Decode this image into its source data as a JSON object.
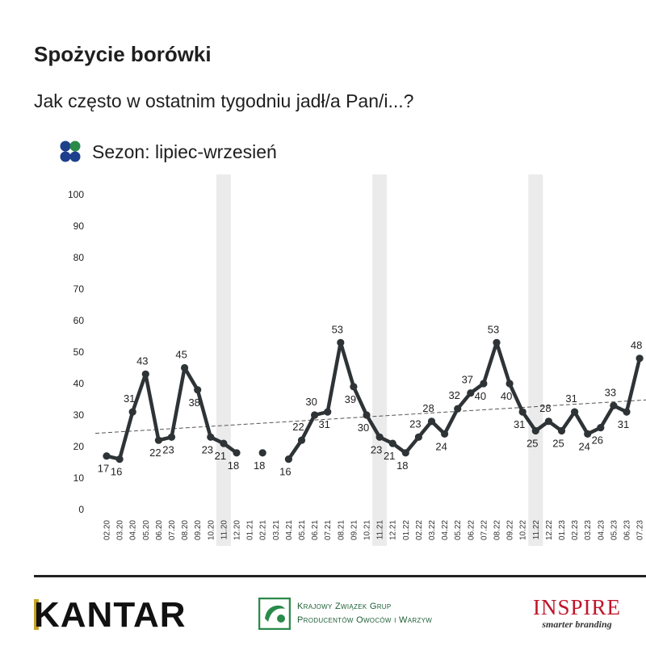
{
  "header": {
    "title": "Spożycie borówki",
    "subtitle": "Jak często w ostatnim tygodniu jadł/a Pan/i...?"
  },
  "legend": {
    "label": "Sezon: lipiec-wrzesień"
  },
  "chart_data": {
    "type": "line",
    "ylim": [
      0,
      100
    ],
    "yticks": [
      0,
      10,
      20,
      30,
      40,
      50,
      60,
      70,
      80,
      90,
      100
    ],
    "categories": [
      "02.20",
      "03.20",
      "04.20",
      "05.20",
      "06.20",
      "07.20",
      "08.20",
      "09.20",
      "10.20",
      "11.20",
      "12.20",
      "01.21",
      "02.21",
      "03.21",
      "04.21",
      "05.21",
      "06.21",
      "07.21",
      "08.21",
      "09.21",
      "10.21",
      "11.21",
      "12.21",
      "01.22",
      "02.22",
      "03.22",
      "04.22",
      "05.22",
      "06.22",
      "07.22",
      "08.22",
      "09.22",
      "10.22",
      "11.22",
      "12.22",
      "01.23",
      "02.23",
      "03.23",
      "04.23",
      "05.23",
      "06.23",
      "07.23"
    ],
    "series": [
      {
        "color": "#2e3336",
        "values": [
          17,
          16,
          31,
          43,
          22,
          23,
          45,
          38,
          23,
          21,
          18,
          null,
          18,
          null,
          16,
          22,
          30,
          31,
          53,
          39,
          30,
          23,
          21,
          18,
          23,
          28,
          24,
          32,
          37,
          40,
          53,
          40,
          31,
          25,
          28,
          25,
          31,
          24,
          26,
          33,
          31,
          48
        ],
        "labels": [
          "17",
          "16",
          "31",
          "43",
          "22",
          "23",
          "45",
          "38",
          "23",
          "21",
          "18",
          "",
          "18",
          "",
          "16",
          "22",
          "30",
          "31",
          "53",
          "39",
          "30",
          "23",
          "21",
          "18",
          "23",
          "28",
          "24",
          "32",
          "37",
          "40",
          "53",
          "40",
          "31",
          "25",
          "28",
          "25",
          "31",
          "24",
          "26",
          "33",
          "31",
          "48"
        ]
      }
    ],
    "highlight_categories": [
      "11.20",
      "11.21",
      "11.22"
    ],
    "trendline": {
      "start": 24.2,
      "end": 34.8
    },
    "colors": {
      "line": "#2e3336",
      "band": "#ebebeb",
      "trend": "#555555"
    }
  },
  "footer": {
    "kantar": "KANTAR",
    "kzgp_line1": "Krajowy Związek Grup",
    "kzgp_line2": "Producentów Owoców i Warzyw",
    "inspire": "INSPIRE",
    "inspire_tagline": "smarter branding"
  }
}
